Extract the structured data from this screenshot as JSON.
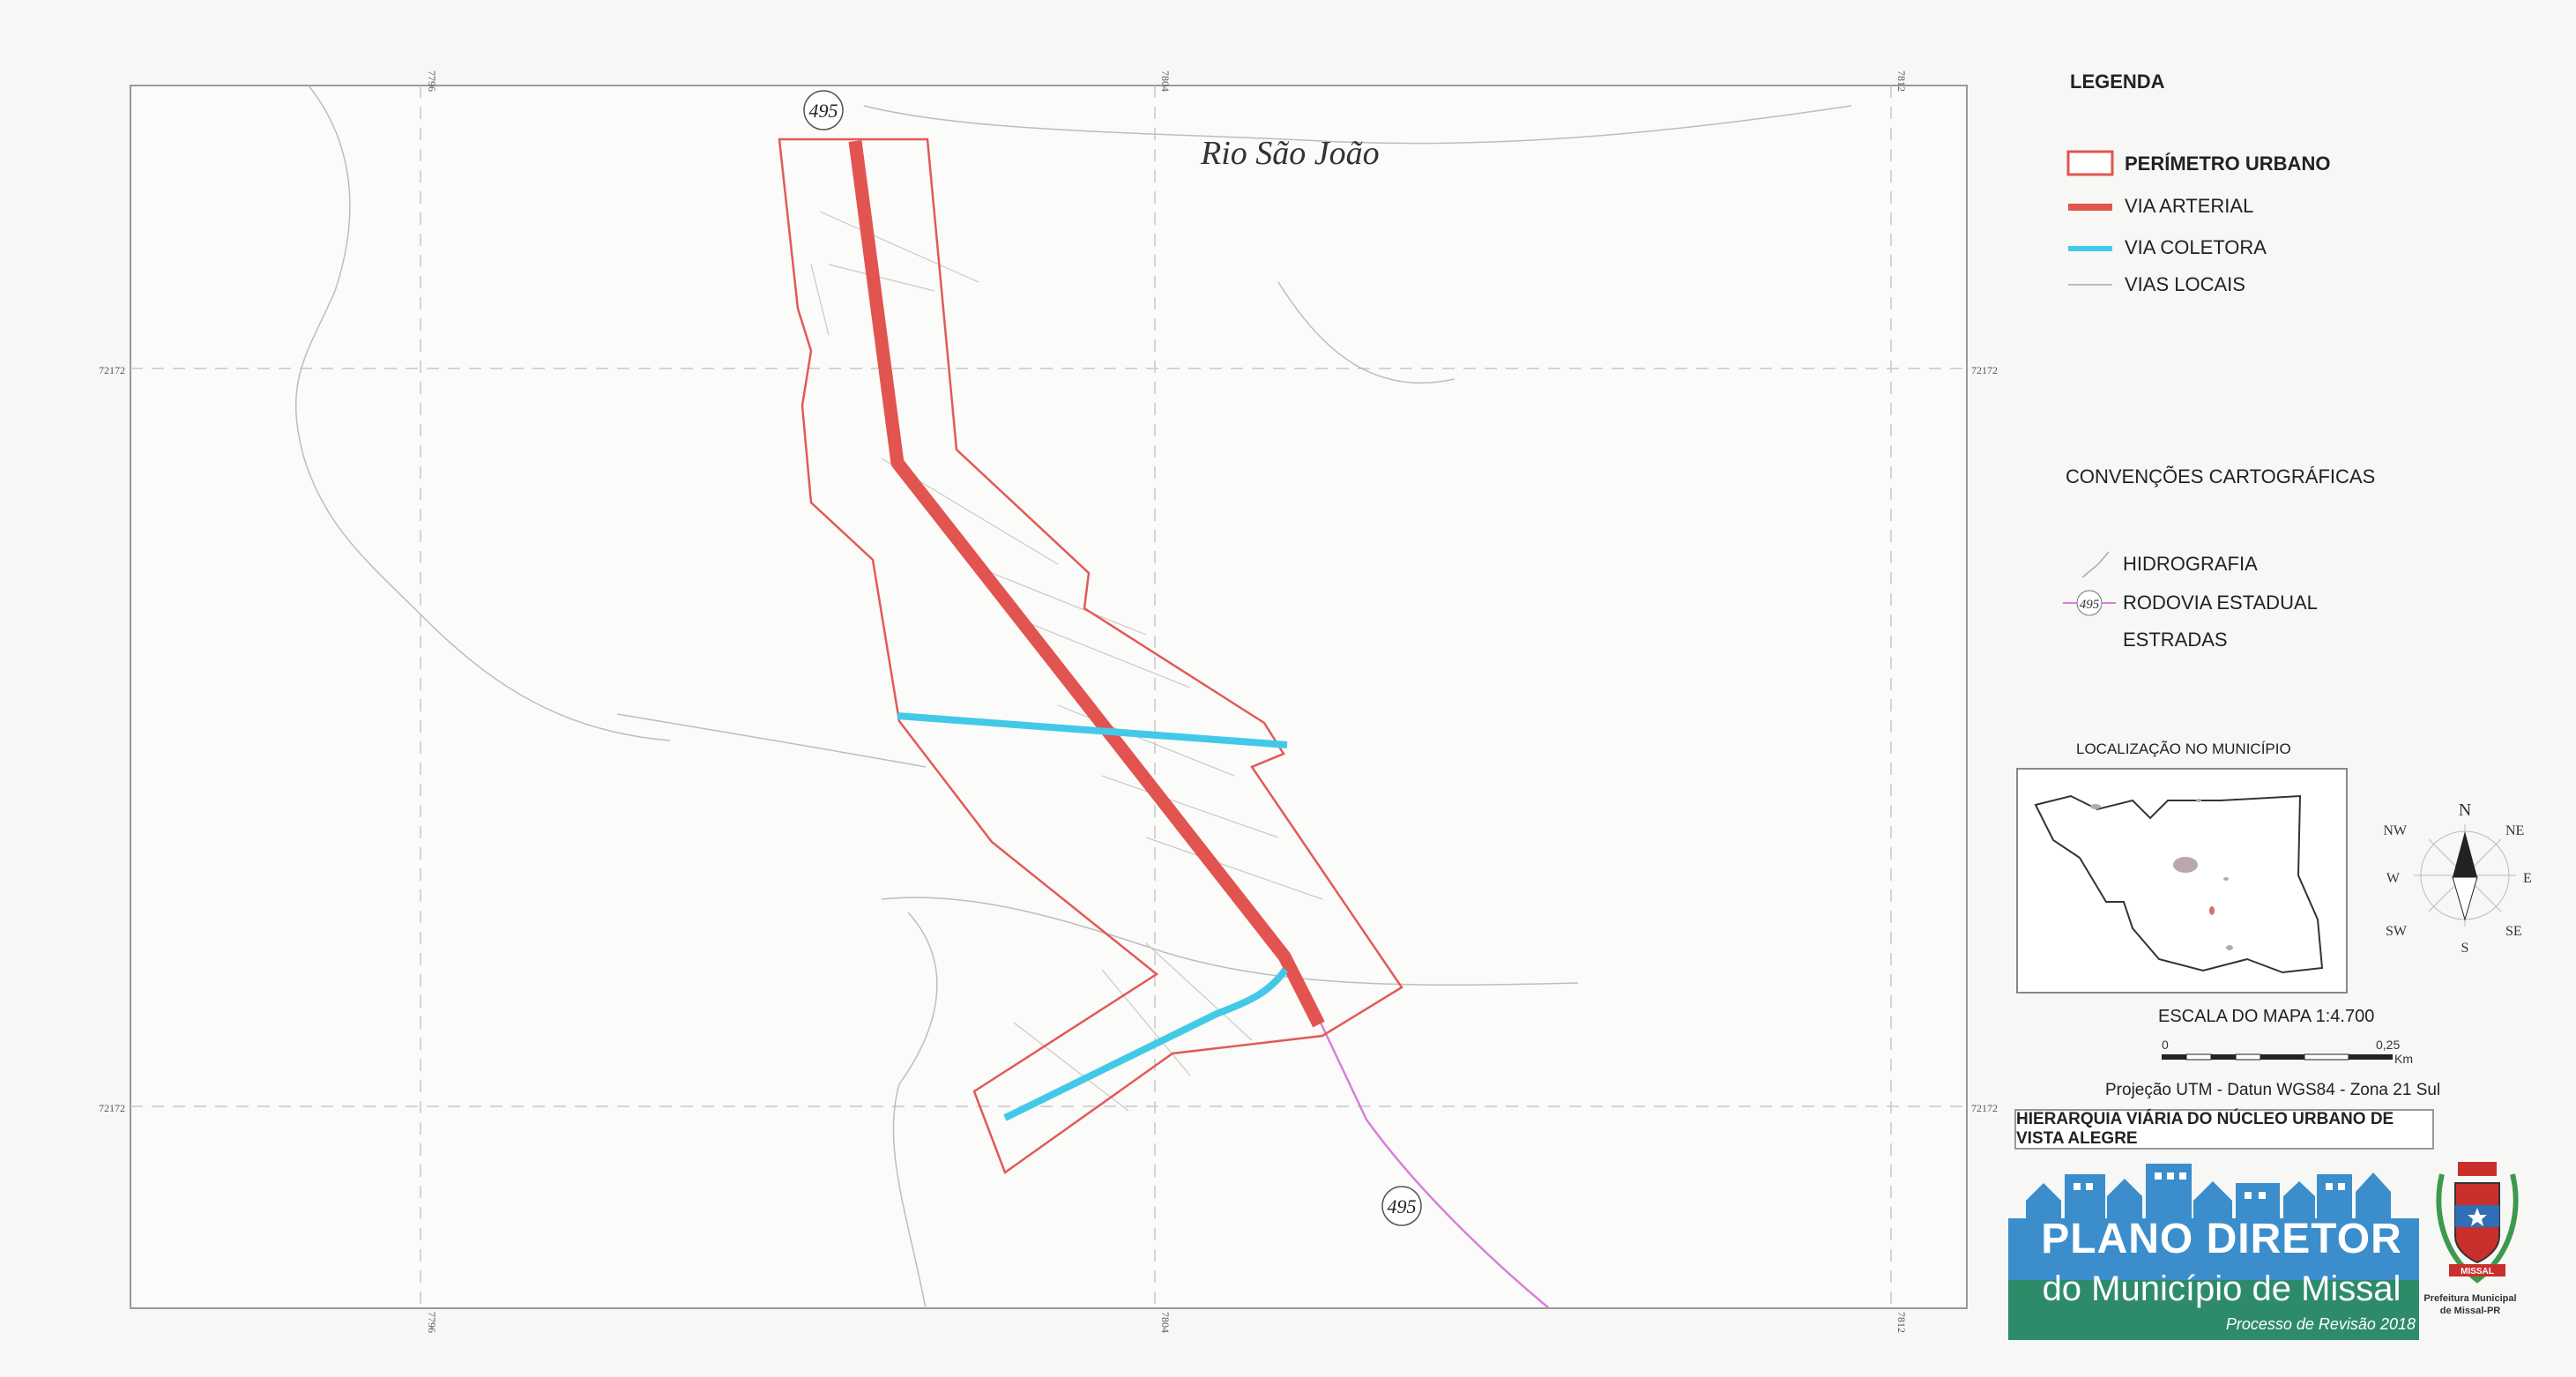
{
  "map": {
    "river_label": "Rio São João",
    "highway_label_top": "495",
    "highway_label_bottom": "495",
    "grid_x_labels": [
      "7796",
      "7804",
      "7812"
    ],
    "grid_y_labels": [
      "72172",
      "72172"
    ]
  },
  "legend": {
    "title": "LEGENDA",
    "items": [
      {
        "label": "PERÍMETRO URBANO",
        "color": "#e2544f"
      },
      {
        "label": "VIA ARTERIAL",
        "color": "#e2544f"
      },
      {
        "label": "VIA COLETORA",
        "color": "#3fc8e6"
      },
      {
        "label": "VIAS LOCAIS",
        "color": "#aaaaaa"
      }
    ]
  },
  "conventions": {
    "title": "CONVENÇÕES CARTOGRÁFICAS",
    "items": [
      "HIDROGRAFIA",
      "RODOVIA  ESTADUAL",
      "ESTRADAS"
    ],
    "highway_symbol_label": "495"
  },
  "location": {
    "title": "LOCALIZAÇÃO NO MUNICÍPIO"
  },
  "compass": {
    "n": "N",
    "ne": "NE",
    "e": "E",
    "se": "SE",
    "s": "S",
    "sw": "SW",
    "w": "W",
    "nw": "NW"
  },
  "scale": {
    "title": "ESCALA DO MAPA 1:4.700",
    "start": "0",
    "end": "0,25",
    "unit": "Km"
  },
  "projection": "Projeção UTM - Datun WGS84 - Zona 21 Sul",
  "map_title": "HIERARQUIA VIÁRIA DO NÚCLEO URBANO DE VISTA ALEGRE",
  "logo": {
    "line1": "PLANO DIRETOR",
    "line2": "do Município de Missal",
    "line3": "Processo de Revisão 2018",
    "prefeitura": "Prefeitura Municipal de Missal-PR",
    "seal_text": "MISSAL",
    "color_blue": "#3b8ecb",
    "color_green": "#2e8b6a"
  }
}
